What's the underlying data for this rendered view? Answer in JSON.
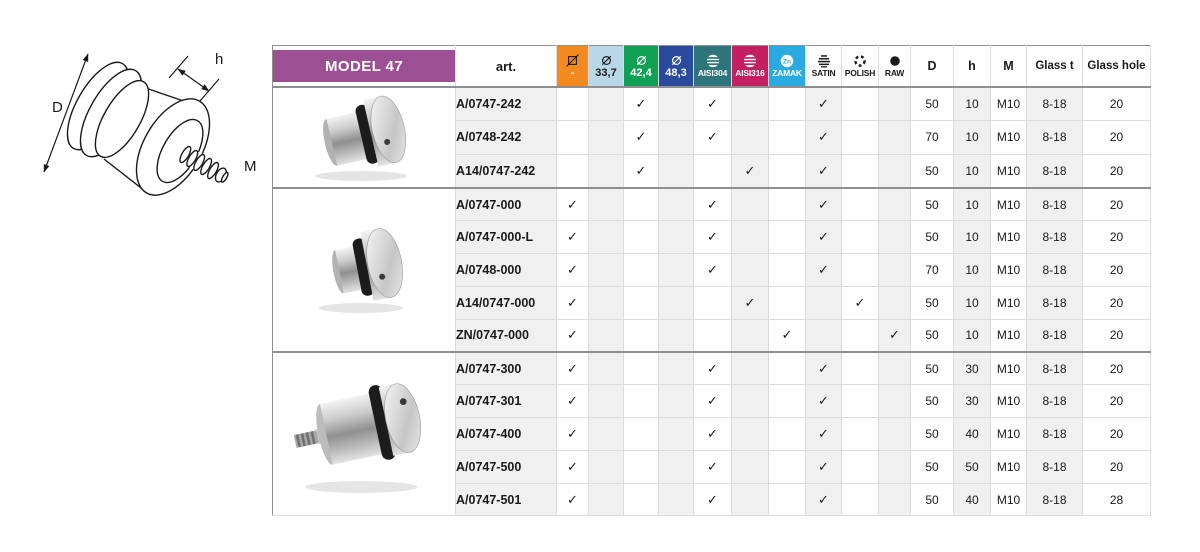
{
  "drawing": {
    "label_d": "D",
    "label_h": "h",
    "label_m": "M"
  },
  "check_glyph": "✓",
  "table": {
    "model_label": "MODEL 47",
    "art_label": "art.",
    "zn_symbol": "Zn",
    "colors": {
      "model_bg": "#9c4f92",
      "stripe": "#f0f0f0",
      "border_light": "#dcdcdc",
      "border_dark": "#8f8f8f"
    },
    "option_columns": [
      {
        "id": "flat",
        "label": "-",
        "icon": "crossed-square-icon",
        "bg": "#f28a1f",
        "fg": "#ffffff",
        "icon_color": "#1a1a1a",
        "size": "big"
      },
      {
        "id": "d337",
        "label": "33,7",
        "icon": "diameter-icon",
        "bg": "#b9d7e8",
        "fg": "#1a1a1a",
        "icon_color": "#1a1a1a",
        "size": "big"
      },
      {
        "id": "d424",
        "label": "42,4",
        "icon": "diameter-icon",
        "bg": "#0fa053",
        "fg": "#ffffff",
        "icon_color": "#ffffff",
        "size": "big"
      },
      {
        "id": "d483",
        "label": "48,3",
        "icon": "diameter-icon",
        "bg": "#2a4a9d",
        "fg": "#ffffff",
        "icon_color": "#ffffff",
        "size": "big"
      },
      {
        "id": "aisi304",
        "label": "AISI304",
        "icon": "steel-icon",
        "bg": "#2d757b",
        "fg": "#ffffff",
        "icon_color": "#ffffff",
        "size": "small"
      },
      {
        "id": "aisi316",
        "label": "AISI316",
        "icon": "steel-icon",
        "bg": "#c41f63",
        "fg": "#ffffff",
        "icon_color": "#ffffff",
        "size": "small"
      },
      {
        "id": "zamak",
        "label": "ZAMAK",
        "icon": "zn-icon",
        "bg": "#29abe2",
        "fg": "#ffffff",
        "icon_color": "#ffffff",
        "size": "small"
      },
      {
        "id": "satin",
        "label": "SATIN",
        "icon": "satin-icon",
        "bg": "",
        "fg": "#1a1a1a",
        "icon_color": "#1a1a1a",
        "size": "small"
      },
      {
        "id": "polish",
        "label": "POLISH",
        "icon": "polish-icon",
        "bg": "",
        "fg": "#1a1a1a",
        "icon_color": "#1a1a1a",
        "size": "small"
      },
      {
        "id": "raw",
        "label": "RAW",
        "icon": "raw-icon",
        "bg": "",
        "fg": "#1a1a1a",
        "icon_color": "#1a1a1a",
        "size": "small"
      }
    ],
    "spec_columns": [
      "D",
      "h",
      "M",
      "Glass t",
      "Glass hole"
    ],
    "groups": [
      {
        "rows": [
          {
            "art": "A/0747-242",
            "checks": [
              "d424",
              "aisi304",
              "satin"
            ],
            "specs": [
              "50",
              "10",
              "M10",
              "8-18",
              "20"
            ]
          },
          {
            "art": "A/0748-242",
            "checks": [
              "d424",
              "aisi304",
              "satin"
            ],
            "specs": [
              "70",
              "10",
              "M10",
              "8-18",
              "20"
            ]
          },
          {
            "art": "A14/0747-242",
            "checks": [
              "d424",
              "aisi316",
              "satin"
            ],
            "specs": [
              "50",
              "10",
              "M10",
              "8-18",
              "20"
            ]
          }
        ]
      },
      {
        "rows": [
          {
            "art": "A/0747-000",
            "checks": [
              "flat",
              "aisi304",
              "satin"
            ],
            "specs": [
              "50",
              "10",
              "M10",
              "8-18",
              "20"
            ]
          },
          {
            "art": "A/0747-000-L",
            "checks": [
              "flat",
              "aisi304",
              "satin"
            ],
            "specs": [
              "50",
              "10",
              "M10",
              "8-18",
              "20"
            ]
          },
          {
            "art": "A/0748-000",
            "checks": [
              "flat",
              "aisi304",
              "satin"
            ],
            "specs": [
              "70",
              "10",
              "M10",
              "8-18",
              "20"
            ]
          },
          {
            "art": "A14/0747-000",
            "checks": [
              "flat",
              "aisi316",
              "polish"
            ],
            "specs": [
              "50",
              "10",
              "M10",
              "8-18",
              "20"
            ]
          },
          {
            "art": "ZN/0747-000",
            "checks": [
              "flat",
              "zamak",
              "raw"
            ],
            "specs": [
              "50",
              "10",
              "M10",
              "8-18",
              "20"
            ]
          }
        ]
      },
      {
        "rows": [
          {
            "art": "A/0747-300",
            "checks": [
              "flat",
              "aisi304",
              "satin"
            ],
            "specs": [
              "50",
              "30",
              "M10",
              "8-18",
              "20"
            ]
          },
          {
            "art": "A/0747-301",
            "checks": [
              "flat",
              "aisi304",
              "satin"
            ],
            "specs": [
              "50",
              "30",
              "M10",
              "8-18",
              "20"
            ]
          },
          {
            "art": "A/0747-400",
            "checks": [
              "flat",
              "aisi304",
              "satin"
            ],
            "specs": [
              "50",
              "40",
              "M10",
              "8-18",
              "20"
            ]
          },
          {
            "art": "A/0747-500",
            "checks": [
              "flat",
              "aisi304",
              "satin"
            ],
            "specs": [
              "50",
              "50",
              "M10",
              "8-18",
              "20"
            ]
          },
          {
            "art": "A/0747-501",
            "checks": [
              "flat",
              "aisi304",
              "satin"
            ],
            "specs": [
              "50",
              "40",
              "M10",
              "8-18",
              "28"
            ]
          }
        ]
      }
    ]
  }
}
